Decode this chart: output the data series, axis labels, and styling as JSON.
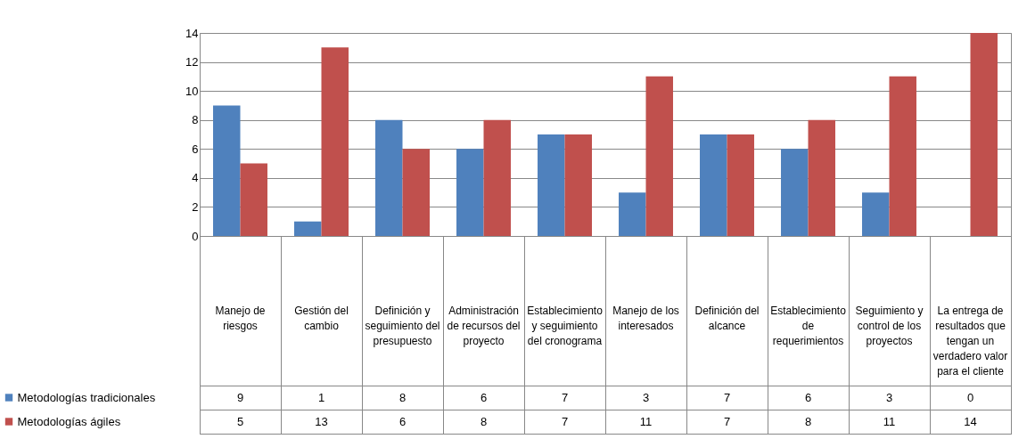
{
  "chart_data": {
    "type": "bar",
    "categories": [
      "Manejo de riesgos",
      "Gestión del cambio",
      "Definición y seguimiento del presupuesto",
      "Administración de recursos del proyecto",
      "Establecimiento y seguimiento del cronograma",
      "Manejo de los interesados",
      "Definición del alcance",
      "Establecimiento de requerimientos",
      "Seguimiento y control de los proyectos",
      "La entrega de resultados que tengan un verdadero valor para el cliente"
    ],
    "series": [
      {
        "name": "Metodologías tradicionales",
        "color": "#4f81bd",
        "values": [
          9,
          1,
          8,
          6,
          7,
          3,
          7,
          6,
          3,
          0
        ]
      },
      {
        "name": "Metodologías ágiles",
        "color": "#c0504d",
        "values": [
          5,
          13,
          6,
          8,
          7,
          11,
          7,
          8,
          11,
          14
        ]
      }
    ],
    "ylim": [
      0,
      14
    ],
    "yticks": [
      0,
      2,
      4,
      6,
      8,
      10,
      12,
      14
    ],
    "grid": "y",
    "data_labels": true,
    "legend": "bottom left"
  }
}
